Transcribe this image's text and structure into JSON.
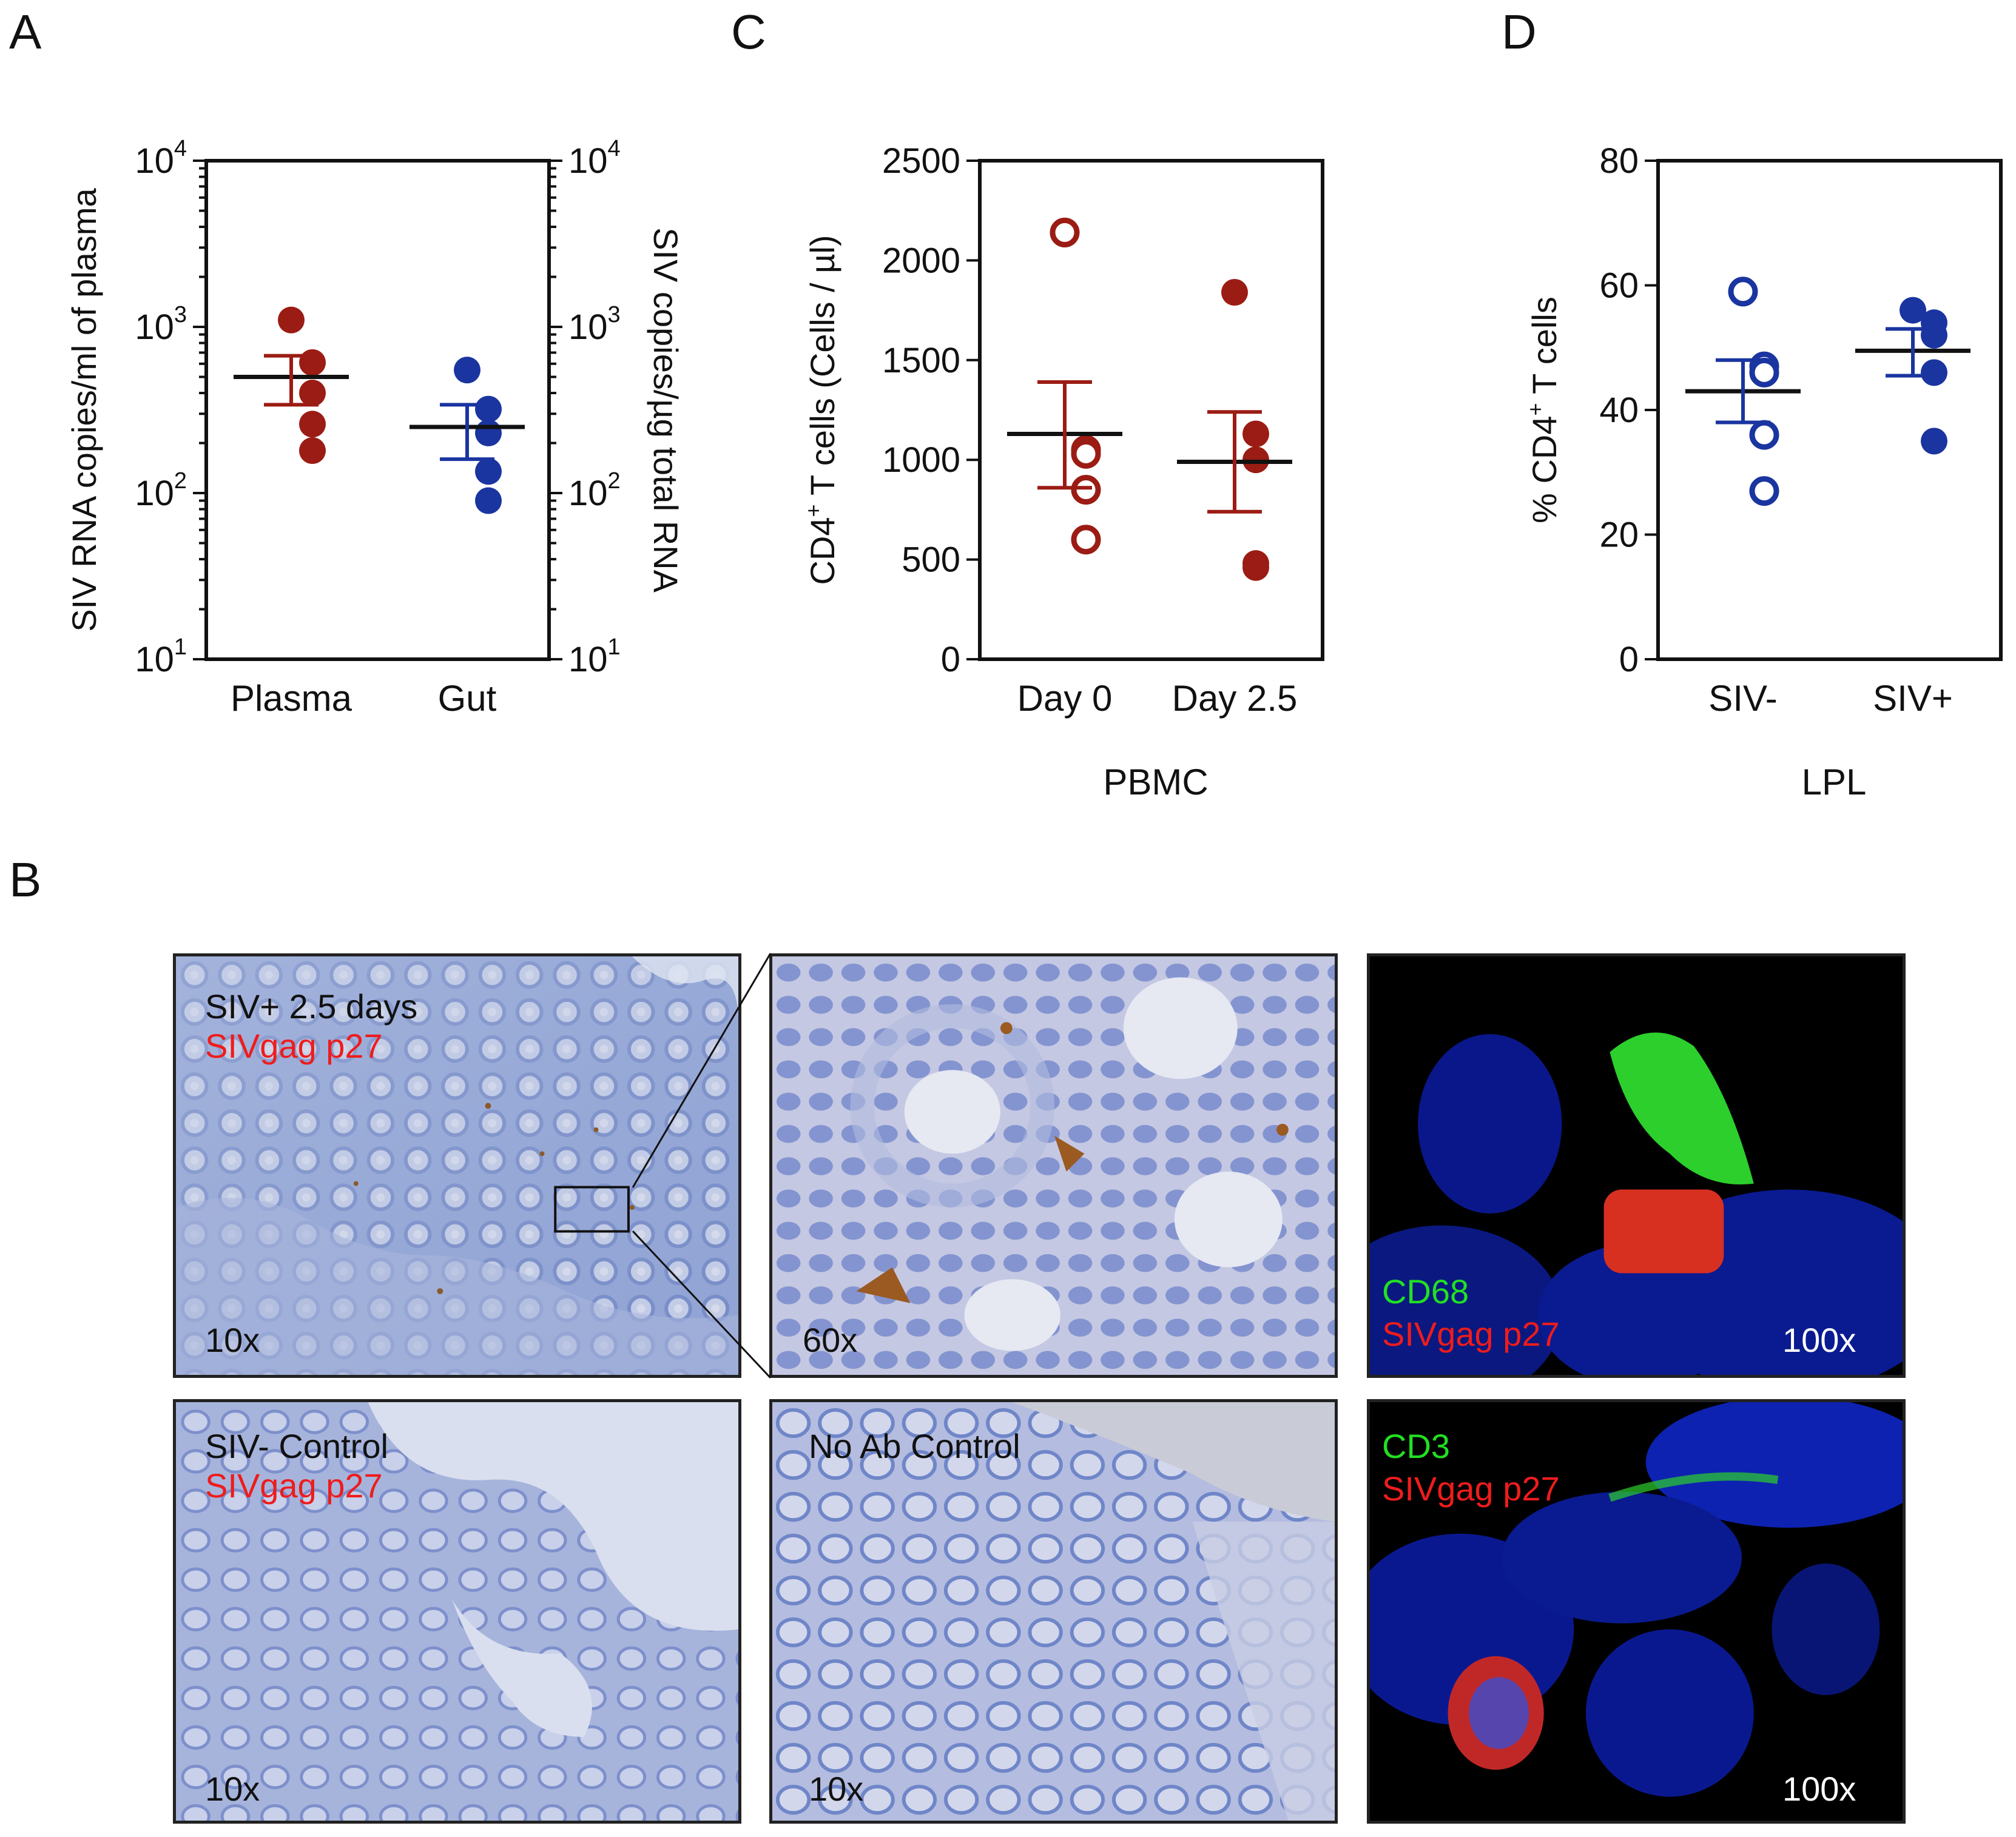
{
  "panels": {
    "A": {
      "letter": "A",
      "ylabel_left": "SIV RNA copies/ml of plasma",
      "ylabel_right": "SIV copies/µg  total RNA",
      "left_ticks": [
        {
          "base": "10",
          "exp": "1"
        },
        {
          "base": "10",
          "exp": "2"
        },
        {
          "base": "10",
          "exp": "3"
        },
        {
          "base": "10",
          "exp": "4"
        }
      ],
      "right_ticks": [
        {
          "base": "10",
          "exp": "1"
        },
        {
          "base": "10",
          "exp": "2"
        },
        {
          "base": "10",
          "exp": "3"
        },
        {
          "base": "10",
          "exp": "4"
        }
      ]
    },
    "C": {
      "letter": "C",
      "ylabel_prefix": "CD4",
      "ylabel_sup": "+",
      "ylabel_suffix": " T cells (Cells / µl)",
      "yticks": [
        "0",
        "500",
        "1000",
        "1500",
        "2000",
        "2500"
      ],
      "group_label": "PBMC"
    },
    "D": {
      "letter": "D",
      "ylabel_prefix": "% CD4",
      "ylabel_sup": "+",
      "ylabel_suffix": " T cells",
      "yticks": [
        "0",
        "20",
        "40",
        "60",
        "80"
      ],
      "group_label": "LPL"
    },
    "B": {
      "letter": "B",
      "tiles": {
        "top_left": {
          "title": "SIV+ 2.5 days",
          "stain": "SIVgag p27",
          "mag": "10x"
        },
        "top_middle": {
          "mag": "60x"
        },
        "top_right": {
          "marker": "CD68",
          "stain": "SIVgag p27",
          "mag": "100x"
        },
        "bottom_left": {
          "title": "SIV- Control",
          "stain": "SIVgag p27",
          "mag": "10x"
        },
        "bottom_middle": {
          "title": "No Ab Control",
          "mag": "10x"
        },
        "bottom_right": {
          "marker": "CD3",
          "stain": "SIVgag p27",
          "mag": "100x"
        }
      }
    }
  },
  "colors": {
    "red_series": "#9b1c14",
    "blue_series": "#1a35a0",
    "label_red": "#ee1c1c",
    "label_green": "#22e022"
  },
  "chart_data": [
    {
      "id": "A",
      "type": "scatter",
      "scale": "log",
      "ylim": [
        10,
        10000
      ],
      "categories": [
        "Plasma",
        "Gut"
      ],
      "series": [
        {
          "category": "Plasma",
          "axis": "left",
          "filled": true,
          "color": "#9b1c14",
          "points": [
            1100,
            610,
            400,
            260,
            180
          ],
          "mean": 500,
          "sem": [
            340,
            670
          ]
        },
        {
          "category": "Gut",
          "axis": "right",
          "filled": true,
          "color": "#1a35a0",
          "points": [
            550,
            320,
            230,
            135,
            90
          ],
          "mean": 250,
          "sem": [
            160,
            340
          ]
        }
      ]
    },
    {
      "id": "C",
      "type": "scatter",
      "ylim": [
        0,
        2500
      ],
      "categories": [
        "Day 0",
        "Day 2.5"
      ],
      "series": [
        {
          "category": "Day 0",
          "filled": false,
          "color": "#9b1c14",
          "points": [
            2140,
            1050,
            1030,
            850,
            600
          ],
          "mean": 1130,
          "sem": [
            860,
            1390
          ]
        },
        {
          "category": "Day 2.5",
          "filled": true,
          "color": "#9b1c14",
          "points": [
            1840,
            1130,
            1000,
            480,
            460
          ],
          "mean": 990,
          "sem": [
            740,
            1240
          ]
        }
      ]
    },
    {
      "id": "D",
      "type": "scatter",
      "ylim": [
        0,
        80
      ],
      "categories": [
        "SIV-",
        "SIV+"
      ],
      "series": [
        {
          "category": "SIV-",
          "filled": false,
          "color": "#1a35a0",
          "points": [
            59,
            47,
            46,
            36,
            27
          ],
          "mean": 43,
          "sem": [
            38,
            48
          ]
        },
        {
          "category": "SIV+",
          "filled": true,
          "color": "#1a35a0",
          "points": [
            56,
            54,
            52,
            46,
            35
          ],
          "mean": 49.5,
          "sem": [
            45.5,
            53
          ]
        }
      ]
    }
  ]
}
